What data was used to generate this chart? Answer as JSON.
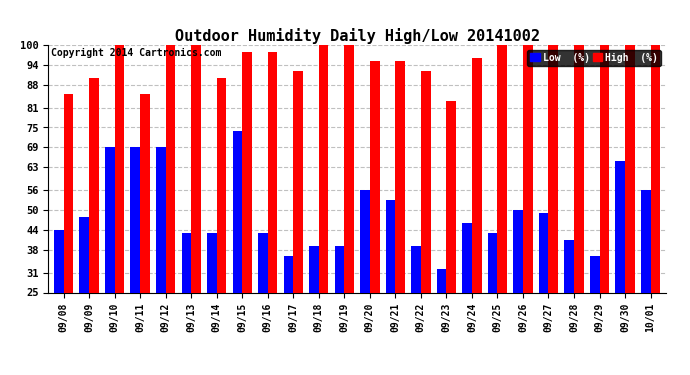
{
  "title": "Outdoor Humidity Daily High/Low 20141002",
  "copyright": "Copyright 2014 Cartronics.com",
  "dates": [
    "09/08",
    "09/09",
    "09/10",
    "09/11",
    "09/12",
    "09/13",
    "09/14",
    "09/15",
    "09/16",
    "09/17",
    "09/18",
    "09/19",
    "09/20",
    "09/21",
    "09/22",
    "09/23",
    "09/24",
    "09/25",
    "09/26",
    "09/27",
    "09/28",
    "09/29",
    "09/30",
    "10/01"
  ],
  "high": [
    85,
    90,
    100,
    85,
    100,
    100,
    90,
    98,
    98,
    92,
    100,
    100,
    95,
    95,
    92,
    83,
    96,
    100,
    100,
    100,
    100,
    100,
    100,
    100
  ],
  "low": [
    44,
    48,
    69,
    69,
    69,
    43,
    43,
    74,
    43,
    36,
    39,
    39,
    56,
    53,
    39,
    32,
    46,
    43,
    50,
    49,
    41,
    36,
    65,
    56
  ],
  "high_color": "#ff0000",
  "low_color": "#0000ff",
  "bg_color": "#ffffff",
  "grid_color": "#c0c0c0",
  "ylim_min": 25,
  "ylim_max": 100,
  "yticks": [
    25,
    31,
    38,
    44,
    50,
    56,
    63,
    69,
    75,
    81,
    88,
    94,
    100
  ],
  "title_fontsize": 11,
  "copyright_fontsize": 7,
  "legend_low_label": "Low  (%)",
  "legend_high_label": "High  (%)"
}
